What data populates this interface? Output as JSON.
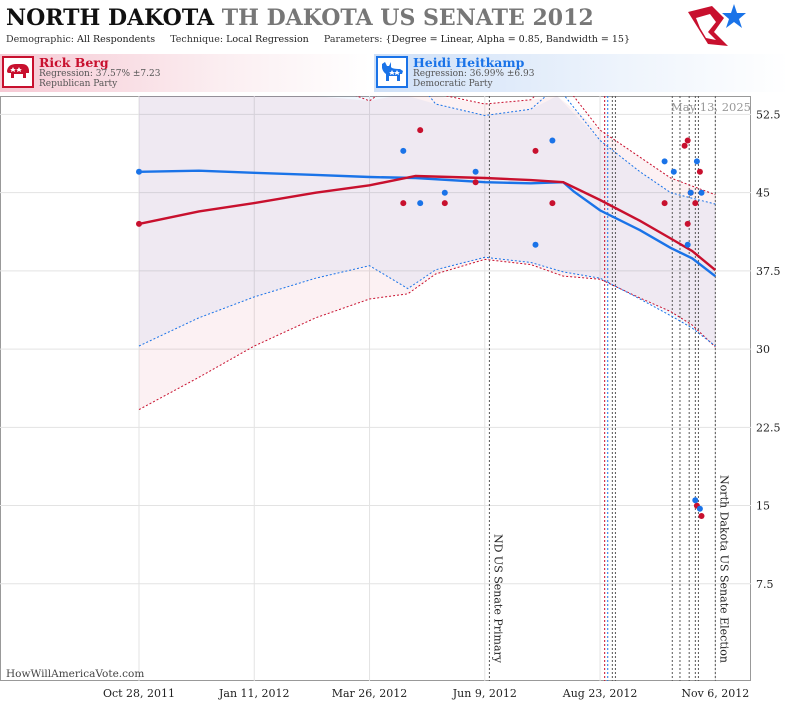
{
  "header": {
    "state": "NORTH DAKOTA",
    "race": "TH DAKOTA US SENATE 2012",
    "demographic_label": "Demographic:",
    "demographic_value": "All Respondents",
    "technique_label": "Technique:",
    "technique_value": "Local Regression",
    "parameters_label": "Parameters:",
    "parameters_value": "{Degree = Linear, Alpha = 0.85, Bandwidth = 15}"
  },
  "candidates": [
    {
      "name": "Rick Berg",
      "regression": "Regression: 37.57% ±7.23",
      "party": "Republican Party",
      "icon": "elephant-icon",
      "color": "#c8102e"
    },
    {
      "name": "Heidi Heitkamp",
      "regression": "Regression: 36.99% ±6.93",
      "party": "Democratic Party",
      "icon": "donkey-icon",
      "color": "#1a73e8"
    }
  ],
  "watermark": "HowWillAmericaVote.com",
  "date_label": "May 13, 2025",
  "chart_data": {
    "type": "line",
    "title": "NORTH DAKOTA TH DAKOTA US SENATE 2012",
    "x_ticks": [
      {
        "date": "2011-10-28",
        "label": "Oct 28, 2011"
      },
      {
        "date": "2012-01-11",
        "label": "Jan 11, 2012"
      },
      {
        "date": "2012-03-26",
        "label": "Mar 26, 2012"
      },
      {
        "date": "2012-06-09",
        "label": "Jun 9, 2012"
      },
      {
        "date": "2012-08-23",
        "label": "Aug 23, 2012"
      },
      {
        "date": "2012-11-06",
        "label": "Nov 6, 2012"
      }
    ],
    "xlim": [
      "2011-10-28",
      "2012-11-11"
    ],
    "y_ticks": [
      7.5,
      15,
      22.5,
      30,
      37.5,
      45,
      52.5
    ],
    "ylim": [
      0,
      57.5
    ],
    "grid": true,
    "series": [
      {
        "name": "Rick Berg",
        "color": "#c8102e",
        "trend": [
          [
            "2011-10-28",
            42.0
          ],
          [
            "2011-12-06",
            43.2
          ],
          [
            "2012-01-11",
            44.0
          ],
          [
            "2012-02-20",
            45.0
          ],
          [
            "2012-03-26",
            45.7
          ],
          [
            "2012-04-25",
            46.6
          ],
          [
            "2012-06-09",
            46.4
          ],
          [
            "2012-07-09",
            46.2
          ],
          [
            "2012-07-30",
            46.0
          ],
          [
            "2012-08-23",
            44.3
          ],
          [
            "2012-09-18",
            42.3
          ],
          [
            "2012-10-08",
            40.6
          ],
          [
            "2012-10-22",
            39.4
          ],
          [
            "2012-11-06",
            37.57
          ]
        ],
        "upper": [
          [
            "2011-10-28",
            61.0
          ],
          [
            "2011-12-06",
            60.0
          ],
          [
            "2012-01-11",
            58.4
          ],
          [
            "2012-02-20",
            55.8
          ],
          [
            "2012-03-26",
            53.8
          ],
          [
            "2012-04-11",
            55.5
          ],
          [
            "2012-04-20",
            57.6
          ],
          [
            "2012-05-08",
            54.5
          ],
          [
            "2012-06-09",
            53.5
          ],
          [
            "2012-07-09",
            53.9
          ],
          [
            "2012-07-26",
            56.3
          ],
          [
            "2012-08-23",
            51.0
          ],
          [
            "2012-09-18",
            48.4
          ],
          [
            "2012-10-08",
            46.4
          ],
          [
            "2012-11-06",
            44.8
          ]
        ],
        "lower": [
          [
            "2011-10-28",
            24.2
          ],
          [
            "2011-12-06",
            27.3
          ],
          [
            "2012-01-11",
            30.3
          ],
          [
            "2012-02-20",
            33.0
          ],
          [
            "2012-03-26",
            34.8
          ],
          [
            "2012-04-20",
            35.3
          ],
          [
            "2012-05-08",
            37.2
          ],
          [
            "2012-06-09",
            38.6
          ],
          [
            "2012-07-09",
            38.1
          ],
          [
            "2012-07-30",
            37.0
          ],
          [
            "2012-08-23",
            36.7
          ],
          [
            "2012-09-18",
            34.9
          ],
          [
            "2012-10-08",
            33.6
          ],
          [
            "2012-10-22",
            32.3
          ],
          [
            "2012-11-06",
            30.2
          ]
        ],
        "polls": [
          [
            "2011-10-28",
            42.0
          ],
          [
            "2012-04-17",
            44.0
          ],
          [
            "2012-04-28",
            51.0
          ],
          [
            "2012-05-14",
            44.0
          ],
          [
            "2012-06-03",
            46.0
          ],
          [
            "2012-07-12",
            49.0
          ],
          [
            "2012-07-23",
            44.0
          ],
          [
            "2012-10-04",
            44.0
          ],
          [
            "2012-10-17",
            49.5
          ],
          [
            "2012-10-19",
            50.0
          ],
          [
            "2012-10-19",
            42.0
          ],
          [
            "2012-10-21",
            45.0
          ],
          [
            "2012-10-24",
            44.0
          ],
          [
            "2012-10-25",
            15.0
          ],
          [
            "2012-10-27",
            47.0
          ],
          [
            "2012-10-28",
            14.0
          ]
        ]
      },
      {
        "name": "Heidi Heitkamp",
        "color": "#1a73e8",
        "trend": [
          [
            "2011-10-28",
            47.0
          ],
          [
            "2011-12-06",
            47.1
          ],
          [
            "2012-01-11",
            46.9
          ],
          [
            "2012-02-20",
            46.7
          ],
          [
            "2012-03-26",
            46.5
          ],
          [
            "2012-04-25",
            46.4
          ],
          [
            "2012-06-09",
            46.0
          ],
          [
            "2012-07-09",
            45.9
          ],
          [
            "2012-07-30",
            46.0
          ],
          [
            "2012-08-06",
            45.1
          ],
          [
            "2012-08-23",
            43.3
          ],
          [
            "2012-09-18",
            41.4
          ],
          [
            "2012-10-08",
            39.7
          ],
          [
            "2012-10-22",
            38.7
          ],
          [
            "2012-11-06",
            36.99
          ]
        ],
        "upper": [
          [
            "2011-10-28",
            72.0
          ],
          [
            "2011-12-06",
            66.0
          ],
          [
            "2012-01-11",
            61.0
          ],
          [
            "2012-02-20",
            57.0
          ],
          [
            "2012-03-26",
            55.0
          ],
          [
            "2012-04-11",
            56.0
          ],
          [
            "2012-04-20",
            56.9
          ],
          [
            "2012-05-08",
            53.5
          ],
          [
            "2012-06-09",
            52.4
          ],
          [
            "2012-07-09",
            53.0
          ],
          [
            "2012-07-26",
            55.2
          ],
          [
            "2012-08-23",
            50.0
          ],
          [
            "2012-09-18",
            47.0
          ],
          [
            "2012-10-08",
            45.0
          ],
          [
            "2012-11-06",
            43.9
          ]
        ],
        "lower": [
          [
            "2011-10-28",
            30.3
          ],
          [
            "2011-12-06",
            33.0
          ],
          [
            "2012-01-11",
            35.0
          ],
          [
            "2012-02-20",
            36.8
          ],
          [
            "2012-03-26",
            38.0
          ],
          [
            "2012-04-20",
            35.8
          ],
          [
            "2012-05-08",
            37.6
          ],
          [
            "2012-06-09",
            38.8
          ],
          [
            "2012-07-09",
            38.3
          ],
          [
            "2012-07-30",
            37.4
          ],
          [
            "2012-08-23",
            36.8
          ],
          [
            "2012-09-18",
            34.8
          ],
          [
            "2012-10-08",
            33.2
          ],
          [
            "2012-10-22",
            32.0
          ],
          [
            "2012-11-06",
            30.3
          ]
        ],
        "polls": [
          [
            "2011-10-28",
            47.0
          ],
          [
            "2012-04-17",
            49.0
          ],
          [
            "2012-04-28",
            44.0
          ],
          [
            "2012-05-14",
            45.0
          ],
          [
            "2012-06-03",
            47.0
          ],
          [
            "2012-07-12",
            40.0
          ],
          [
            "2012-07-23",
            50.0
          ],
          [
            "2012-10-04",
            48.0
          ],
          [
            "2012-10-10",
            47.0
          ],
          [
            "2012-10-19",
            40.0
          ],
          [
            "2012-10-21",
            45.0
          ],
          [
            "2012-10-24",
            15.5
          ],
          [
            "2012-10-25",
            48.0
          ],
          [
            "2012-10-27",
            14.7
          ],
          [
            "2012-10-28",
            45.0
          ]
        ]
      }
    ],
    "vertical_lines": [
      {
        "date": "2012-06-12",
        "label": "ND US Senate Primary",
        "color": "#555555"
      },
      {
        "date": "2012-08-26",
        "label": "",
        "color": "#c8102e"
      },
      {
        "date": "2012-08-28",
        "label": "",
        "color": "#1a73e8"
      },
      {
        "date": "2012-08-31",
        "label": "",
        "color": "#555555"
      },
      {
        "date": "2012-09-02",
        "label": "",
        "color": "#555555"
      },
      {
        "date": "2012-10-09",
        "label": "",
        "color": "#555555"
      },
      {
        "date": "2012-10-14",
        "label": "",
        "color": "#555555"
      },
      {
        "date": "2012-10-20",
        "label": "",
        "color": "#555555"
      },
      {
        "date": "2012-10-24",
        "label": "",
        "color": "#555555"
      },
      {
        "date": "2012-10-26",
        "label": "",
        "color": "#555555"
      },
      {
        "date": "2012-11-06",
        "label": "North Dakota US Senate Election",
        "color": "#555555"
      }
    ]
  }
}
